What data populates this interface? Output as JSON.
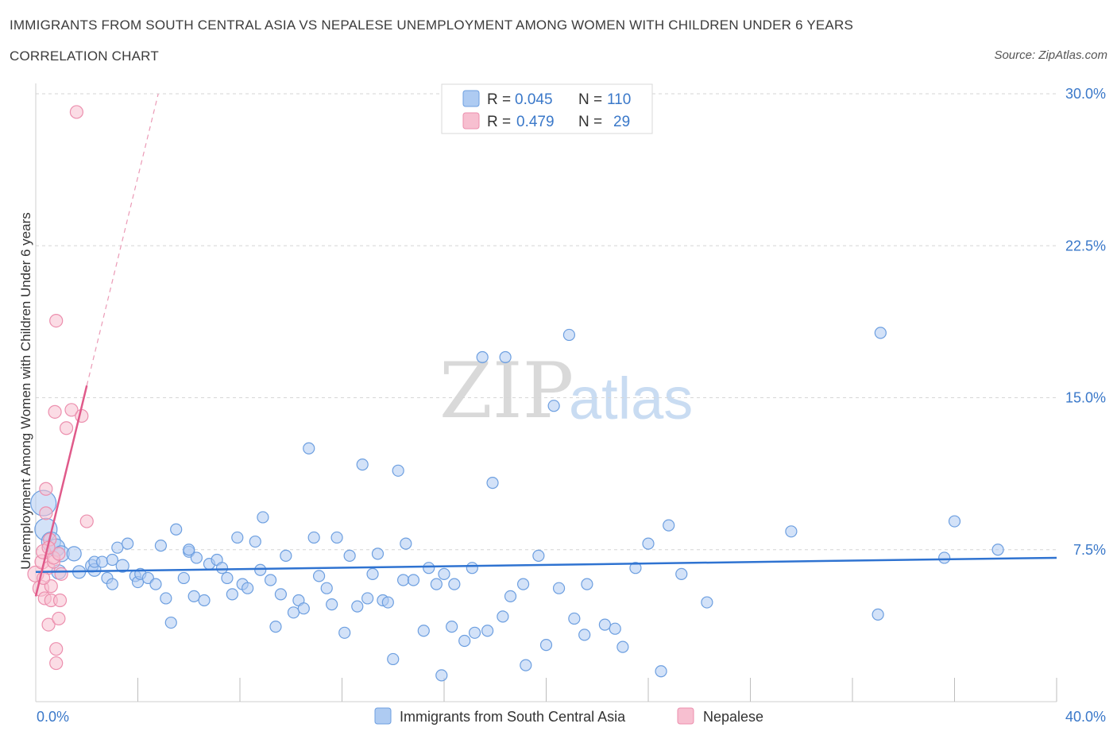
{
  "header": {
    "title": "IMMIGRANTS FROM SOUTH CENTRAL ASIA VS NEPALESE UNEMPLOYMENT AMONG WOMEN WITH CHILDREN UNDER 6 YEARS",
    "subtitle": "CORRELATION CHART",
    "source": "Source: ZipAtlas.com"
  },
  "watermark": {
    "zip": "ZIP",
    "atlas": "atlas"
  },
  "legend": {
    "rows": [
      {
        "r_label": "R =",
        "r_value": "0.045",
        "n_label": "N =",
        "n_value": "110",
        "color": "#aecbf2",
        "stroke": "#6d9fe0"
      },
      {
        "r_label": "R =",
        "r_value": "0.479",
        "n_label": "N =",
        "n_value": "29",
        "color": "#f7bfd0",
        "stroke": "#ec8fae"
      }
    ]
  },
  "chart_data": {
    "type": "scatter",
    "xlabel": "",
    "ylabel": "Unemployment Among Women with Children Under 6 years",
    "xlim": [
      0,
      40
    ],
    "ylim": [
      0,
      30
    ],
    "x_tick_labels": [
      "0.0%",
      "40.0%"
    ],
    "y_ticks": [
      7.5,
      15.0,
      22.5,
      30.0
    ],
    "y_tick_labels": [
      "7.5%",
      "15.0%",
      "22.5%",
      "30.0%"
    ],
    "grid": "horizontal-dashed",
    "series": [
      {
        "name": "Immigrants from South Central Asia",
        "color": "#aecbf2",
        "stroke": "#6d9fe0",
        "trend": {
          "x": [
            0.0,
            40.0
          ],
          "y": [
            6.4,
            7.1
          ],
          "color": "#2f73d1"
        },
        "points": [
          [
            0.3,
            9.8,
            16
          ],
          [
            0.4,
            8.5,
            14
          ],
          [
            0.6,
            7.9,
            12
          ],
          [
            0.8,
            7.6,
            11
          ],
          [
            1.0,
            7.3,
            10
          ],
          [
            0.9,
            6.4,
            9
          ],
          [
            1.5,
            7.3,
            9
          ],
          [
            1.7,
            6.4,
            8
          ],
          [
            2.2,
            6.7,
            8
          ],
          [
            2.3,
            6.5,
            8
          ],
          [
            2.3,
            6.9,
            7
          ],
          [
            2.6,
            6.9,
            7
          ],
          [
            2.8,
            6.1,
            7
          ],
          [
            3.0,
            5.8,
            7
          ],
          [
            3.0,
            7.0,
            7
          ],
          [
            3.2,
            7.6,
            7
          ],
          [
            3.4,
            6.7,
            8
          ],
          [
            3.6,
            7.8,
            7
          ],
          [
            3.9,
            6.2,
            7
          ],
          [
            4.0,
            5.9,
            7
          ],
          [
            4.1,
            6.3,
            7
          ],
          [
            4.4,
            6.1,
            7
          ],
          [
            4.7,
            5.8,
            7
          ],
          [
            4.9,
            7.7,
            7
          ],
          [
            5.1,
            5.1,
            7
          ],
          [
            5.3,
            3.9,
            7
          ],
          [
            5.5,
            8.5,
            7
          ],
          [
            5.8,
            6.1,
            7
          ],
          [
            6.0,
            7.4,
            7
          ],
          [
            6.2,
            5.2,
            7
          ],
          [
            6.3,
            7.1,
            7
          ],
          [
            6.6,
            5.0,
            7
          ],
          [
            6.8,
            6.8,
            7
          ],
          [
            7.1,
            7.0,
            7
          ],
          [
            7.3,
            6.6,
            7
          ],
          [
            7.5,
            6.1,
            7
          ],
          [
            7.7,
            5.3,
            7
          ],
          [
            7.9,
            8.1,
            7
          ],
          [
            8.1,
            5.8,
            7
          ],
          [
            8.3,
            5.6,
            7
          ],
          [
            8.6,
            7.9,
            7
          ],
          [
            8.8,
            6.5,
            7
          ],
          [
            8.9,
            9.1,
            7
          ],
          [
            9.2,
            6.0,
            7
          ],
          [
            9.4,
            3.7,
            7
          ],
          [
            9.6,
            5.3,
            7
          ],
          [
            9.8,
            7.2,
            7
          ],
          [
            10.1,
            4.4,
            7
          ],
          [
            10.3,
            5.0,
            7
          ],
          [
            10.5,
            4.6,
            7
          ],
          [
            10.7,
            12.5,
            7
          ],
          [
            10.9,
            8.1,
            7
          ],
          [
            11.1,
            6.2,
            7
          ],
          [
            11.4,
            5.6,
            7
          ],
          [
            11.6,
            4.8,
            7
          ],
          [
            11.8,
            8.1,
            7
          ],
          [
            12.1,
            3.4,
            7
          ],
          [
            12.3,
            7.2,
            7
          ],
          [
            12.6,
            4.7,
            7
          ],
          [
            12.8,
            11.7,
            7
          ],
          [
            13.0,
            5.1,
            7
          ],
          [
            13.2,
            6.3,
            7
          ],
          [
            13.4,
            7.3,
            7
          ],
          [
            13.6,
            5.0,
            7
          ],
          [
            13.8,
            4.9,
            7
          ],
          [
            14.0,
            2.1,
            7
          ],
          [
            14.2,
            11.4,
            7
          ],
          [
            14.4,
            6.0,
            7
          ],
          [
            14.5,
            7.8,
            7
          ],
          [
            14.8,
            6.0,
            7
          ],
          [
            15.2,
            3.5,
            7
          ],
          [
            15.4,
            6.6,
            7
          ],
          [
            15.7,
            5.8,
            7
          ],
          [
            15.9,
            1.3,
            7
          ],
          [
            16.0,
            6.3,
            7
          ],
          [
            16.3,
            3.7,
            7
          ],
          [
            16.4,
            5.8,
            7
          ],
          [
            16.8,
            3.0,
            7
          ],
          [
            17.1,
            6.6,
            7
          ],
          [
            17.2,
            3.4,
            7
          ],
          [
            17.5,
            17.0,
            7
          ],
          [
            17.7,
            3.5,
            7
          ],
          [
            17.9,
            10.8,
            7
          ],
          [
            18.3,
            4.2,
            7
          ],
          [
            18.4,
            17.0,
            7
          ],
          [
            18.6,
            5.2,
            7
          ],
          [
            19.1,
            5.8,
            7
          ],
          [
            19.2,
            1.8,
            7
          ],
          [
            19.7,
            7.2,
            7
          ],
          [
            20.0,
            2.8,
            7
          ],
          [
            20.3,
            14.6,
            7
          ],
          [
            20.5,
            5.6,
            7
          ],
          [
            20.9,
            18.1,
            7
          ],
          [
            21.1,
            4.1,
            7
          ],
          [
            21.5,
            3.3,
            7
          ],
          [
            21.6,
            5.8,
            7
          ],
          [
            22.3,
            3.8,
            7
          ],
          [
            22.7,
            3.6,
            7
          ],
          [
            23.0,
            2.7,
            7
          ],
          [
            23.5,
            6.6,
            7
          ],
          [
            24.0,
            7.8,
            7
          ],
          [
            24.5,
            1.5,
            7
          ],
          [
            24.8,
            8.7,
            7
          ],
          [
            25.3,
            6.3,
            7
          ],
          [
            26.3,
            4.9,
            7
          ],
          [
            29.6,
            8.4,
            7
          ],
          [
            33.0,
            4.3,
            7
          ],
          [
            33.1,
            18.2,
            7
          ],
          [
            35.6,
            7.1,
            7
          ],
          [
            36.0,
            8.9,
            7
          ],
          [
            37.7,
            7.5,
            7
          ],
          [
            6.0,
            7.5,
            7
          ]
        ]
      },
      {
        "name": "Nepalese",
        "color": "#f7bfd0",
        "stroke": "#ec8fae",
        "trend": {
          "x": [
            0.0,
            2.0
          ],
          "y": [
            5.2,
            15.6
          ],
          "dash_to": [
            4.8,
            30.0
          ],
          "color": "#e05a8a"
        },
        "points": [
          [
            0.0,
            6.3,
            10
          ],
          [
            0.2,
            5.6,
            10
          ],
          [
            0.25,
            6.9,
            9
          ],
          [
            0.3,
            7.4,
            9
          ],
          [
            0.35,
            5.1,
            8
          ],
          [
            0.4,
            9.3,
            8
          ],
          [
            0.4,
            10.5,
            8
          ],
          [
            0.5,
            3.8,
            8
          ],
          [
            0.5,
            6.6,
            8
          ],
          [
            0.55,
            8.0,
            8
          ],
          [
            0.6,
            5.0,
            8
          ],
          [
            0.6,
            5.7,
            8
          ],
          [
            0.7,
            6.9,
            8
          ],
          [
            0.7,
            7.1,
            8
          ],
          [
            0.75,
            14.3,
            8
          ],
          [
            0.8,
            1.9,
            8
          ],
          [
            0.8,
            2.6,
            8
          ],
          [
            0.8,
            18.8,
            8
          ],
          [
            0.9,
            4.1,
            8
          ],
          [
            0.9,
            7.3,
            8
          ],
          [
            0.95,
            5.0,
            8
          ],
          [
            1.0,
            6.3,
            8
          ],
          [
            1.2,
            13.5,
            8
          ],
          [
            1.4,
            14.4,
            8
          ],
          [
            1.6,
            29.1,
            8
          ],
          [
            1.8,
            14.1,
            8
          ],
          [
            2.0,
            8.9,
            8
          ],
          [
            0.3,
            6.1,
            8
          ],
          [
            0.5,
            7.6,
            8
          ]
        ]
      }
    ]
  }
}
